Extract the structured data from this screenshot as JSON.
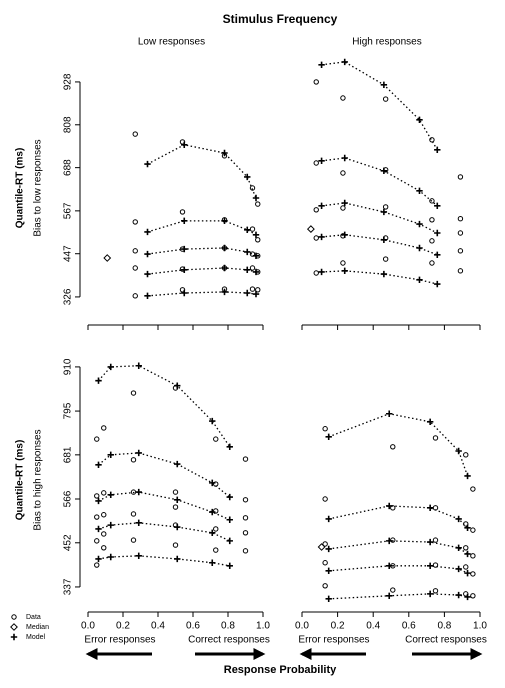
{
  "title": "Stimulus Frequency",
  "x_label": "Response Probability",
  "legend": [
    {
      "name": "Data",
      "marker": "circle"
    },
    {
      "name": "Median",
      "marker": "diamond"
    },
    {
      "name": "Model",
      "marker": "cross"
    }
  ],
  "chart_data": [
    {
      "type": "quantile-probability",
      "title": "Low responses",
      "ylabel": "Quantile-RT (ms)",
      "ylabel2": "Bias to low responses",
      "xlim": [
        0,
        1
      ],
      "xticks": [
        0,
        0.2,
        0.4,
        0.6,
        0.8,
        1
      ],
      "ylim": [
        267,
        995
      ],
      "yticks": [
        326,
        447,
        567,
        688,
        808,
        928
      ],
      "series": [
        {
          "marker": "circle",
          "x": [
            0.27,
            0.27,
            0.27,
            0.27,
            0.27,
            0.54,
            0.54,
            0.54,
            0.54,
            0.54,
            0.78,
            0.78,
            0.78,
            0.78,
            0.78,
            0.94,
            0.94,
            0.94,
            0.94,
            0.94,
            0.97,
            0.97,
            0.97,
            0.97,
            0.97
          ],
          "values": [
            782,
            536,
            455,
            407,
            329,
            760,
            564,
            460,
            404,
            346,
            721,
            542,
            463,
            407,
            348,
            631,
            516,
            446,
            407,
            348,
            586,
            486,
            441,
            396,
            346
          ]
        },
        {
          "marker": "diamond",
          "x": [
            0.11
          ],
          "values": [
            435
          ]
        },
        {
          "marker": "cross",
          "x": [
            0.34,
            0.55,
            0.78,
            0.91,
            0.96
          ],
          "values": [
            698,
            752,
            729,
            662,
            603
          ]
        },
        {
          "marker": "cross",
          "x": [
            0.34,
            0.55,
            0.78,
            0.91,
            0.96
          ],
          "values": [
            508,
            539,
            539,
            514,
            500
          ]
        },
        {
          "marker": "cross",
          "x": [
            0.34,
            0.55,
            0.78,
            0.91,
            0.96
          ],
          "values": [
            446,
            460,
            463,
            452,
            441
          ]
        },
        {
          "marker": "cross",
          "x": [
            0.34,
            0.55,
            0.78,
            0.91,
            0.96
          ],
          "values": [
            390,
            402,
            407,
            402,
            396
          ]
        },
        {
          "marker": "cross",
          "x": [
            0.34,
            0.55,
            0.78,
            0.91,
            0.96
          ],
          "values": [
            329,
            337,
            340,
            337,
            334
          ]
        }
      ]
    },
    {
      "type": "quantile-probability",
      "title": "High responses",
      "xlim": [
        0,
        1
      ],
      "xticks": [
        0,
        0.2,
        0.4,
        0.6,
        0.8,
        1
      ],
      "ylim": [
        267,
        995
      ],
      "series": [
        {
          "marker": "circle",
          "x": [
            0.08,
            0.08,
            0.08,
            0.08,
            0.08,
            0.23,
            0.23,
            0.23,
            0.23,
            0.23,
            0.47,
            0.47,
            0.47,
            0.47,
            0.47,
            0.73,
            0.73,
            0.73,
            0.73,
            0.73,
            0.89,
            0.89,
            0.89,
            0.89,
            0.89
          ],
          "values": [
            928,
            701,
            570,
            491,
            393,
            883,
            673,
            575,
            497,
            421,
            880,
            682,
            578,
            491,
            432,
            766,
            595,
            542,
            483,
            421,
            662,
            545,
            505,
            455,
            399
          ]
        },
        {
          "marker": "diamond",
          "x": [
            0.05
          ],
          "values": [
            516
          ]
        },
        {
          "marker": "cross",
          "x": [
            0.11,
            0.24,
            0.46,
            0.66,
            0.76
          ],
          "values": [
            976,
            984,
            920,
            822,
            738
          ]
        },
        {
          "marker": "cross",
          "x": [
            0.11,
            0.24,
            0.46,
            0.66,
            0.76
          ],
          "values": [
            707,
            715,
            679,
            623,
            581
          ]
        },
        {
          "marker": "cross",
          "x": [
            0.11,
            0.24,
            0.46,
            0.66,
            0.76
          ],
          "values": [
            581,
            589,
            564,
            530,
            505
          ]
        },
        {
          "marker": "cross",
          "x": [
            0.11,
            0.24,
            0.46,
            0.66,
            0.76
          ],
          "values": [
            494,
            500,
            486,
            463,
            444
          ]
        },
        {
          "marker": "cross",
          "x": [
            0.11,
            0.24,
            0.46,
            0.66,
            0.76
          ],
          "values": [
            396,
            399,
            390,
            374,
            362
          ]
        }
      ]
    },
    {
      "type": "quantile-probability",
      "ylabel": "Quantile-RT (ms)",
      "ylabel2": "Bias to high responses",
      "annotations": [
        "Error responses",
        "Correct responses"
      ],
      "xlim": [
        0,
        1
      ],
      "xticks": [
        {
          "value": 0,
          "label": "0.0"
        },
        {
          "value": 0.2,
          "label": "0.2"
        },
        {
          "value": 0.4,
          "label": "0.4"
        },
        {
          "value": 0.6,
          "label": "0.6"
        },
        {
          "value": 0.8,
          "label": "0.8"
        },
        {
          "value": 1,
          "label": "1.0"
        }
      ],
      "ylim": [
        290,
        941
      ],
      "yticks": [
        337,
        452,
        566,
        681,
        795,
        910
      ],
      "series": [
        {
          "marker": "circle",
          "x": [
            0.05,
            0.05,
            0.05,
            0.05,
            0.05,
            0.09,
            0.09,
            0.09,
            0.09,
            0.09,
            0.26,
            0.26,
            0.26,
            0.26,
            0.26,
            0.5,
            0.5,
            0.5,
            0.5,
            0.5,
            0.73,
            0.73,
            0.73,
            0.73,
            0.73,
            0.9,
            0.9,
            0.9,
            0.9,
            0.9
          ],
          "values": [
            722,
            574,
            519,
            457,
            394,
            751,
            582,
            525,
            475,
            439,
            842,
            668,
            584,
            527,
            459,
            855,
            584,
            545,
            498,
            446,
            722,
            605,
            535,
            488,
            433,
            670,
            564,
            517,
            478,
            431
          ]
        },
        {
          "marker": "cross",
          "x": [
            0.06,
            0.13,
            0.29,
            0.51,
            0.71,
            0.81
          ],
          "values": [
            874,
            910,
            913,
            861,
            769,
            702
          ]
        },
        {
          "marker": "cross",
          "x": [
            0.06,
            0.13,
            0.29,
            0.51,
            0.71,
            0.81
          ],
          "values": [
            655,
            681,
            686,
            657,
            608,
            571
          ]
        },
        {
          "marker": "cross",
          "x": [
            0.06,
            0.13,
            0.29,
            0.51,
            0.71,
            0.81
          ],
          "values": [
            561,
            577,
            584,
            564,
            532,
            512
          ]
        },
        {
          "marker": "cross",
          "x": [
            0.06,
            0.13,
            0.29,
            0.51,
            0.71,
            0.81
          ],
          "values": [
            488,
            498,
            504,
            493,
            478,
            457
          ]
        },
        {
          "marker": "cross",
          "x": [
            0.06,
            0.13,
            0.29,
            0.51,
            0.71,
            0.81
          ],
          "values": [
            410,
            415,
            418,
            410,
            400,
            392
          ]
        }
      ]
    },
    {
      "type": "quantile-probability",
      "annotations": [
        "Error responses",
        "Correct responses"
      ],
      "xlim": [
        0,
        1
      ],
      "xticks": [
        {
          "value": 0,
          "label": "0.0"
        },
        {
          "value": 0.2,
          "label": "0.2"
        },
        {
          "value": 0.4,
          "label": "0.4"
        },
        {
          "value": 0.6,
          "label": "0.6"
        },
        {
          "value": 0.8,
          "label": "0.8"
        },
        {
          "value": 1,
          "label": "1.0"
        }
      ],
      "ylim": [
        290,
        941
      ],
      "series": [
        {
          "marker": "circle",
          "x": [
            0.13,
            0.13,
            0.13,
            0.13,
            0.13,
            0.51,
            0.51,
            0.51,
            0.51,
            0.51,
            0.75,
            0.75,
            0.75,
            0.75,
            0.75,
            0.92,
            0.92,
            0.92,
            0.92,
            0.92,
            0.96,
            0.96,
            0.96,
            0.96,
            0.96
          ],
          "values": [
            749,
            566,
            449,
            400,
            340,
            702,
            543,
            459,
            392,
            329,
            725,
            543,
            459,
            394,
            327,
            681,
            501,
            439,
            389,
            319,
            592,
            485,
            418,
            371,
            314
          ]
        },
        {
          "marker": "diamond",
          "x": [
            0.11
          ],
          "values": [
            441
          ]
        },
        {
          "marker": "cross",
          "x": [
            0.15,
            0.49,
            0.72,
            0.88,
            0.93
          ],
          "values": [
            728,
            788,
            767,
            691,
            626
          ]
        },
        {
          "marker": "cross",
          "x": [
            0.15,
            0.49,
            0.72,
            0.88,
            0.93
          ],
          "values": [
            514,
            548,
            543,
            514,
            491
          ]
        },
        {
          "marker": "cross",
          "x": [
            0.15,
            0.49,
            0.72,
            0.88,
            0.93
          ],
          "values": [
            436,
            457,
            454,
            439,
            423
          ]
        },
        {
          "marker": "cross",
          "x": [
            0.15,
            0.49,
            0.72,
            0.88,
            0.93
          ],
          "values": [
            379,
            392,
            392,
            384,
            373
          ]
        },
        {
          "marker": "cross",
          "x": [
            0.15,
            0.49,
            0.72,
            0.88,
            0.93
          ],
          "values": [
            306,
            314,
            319,
            316,
            311
          ]
        }
      ]
    }
  ]
}
